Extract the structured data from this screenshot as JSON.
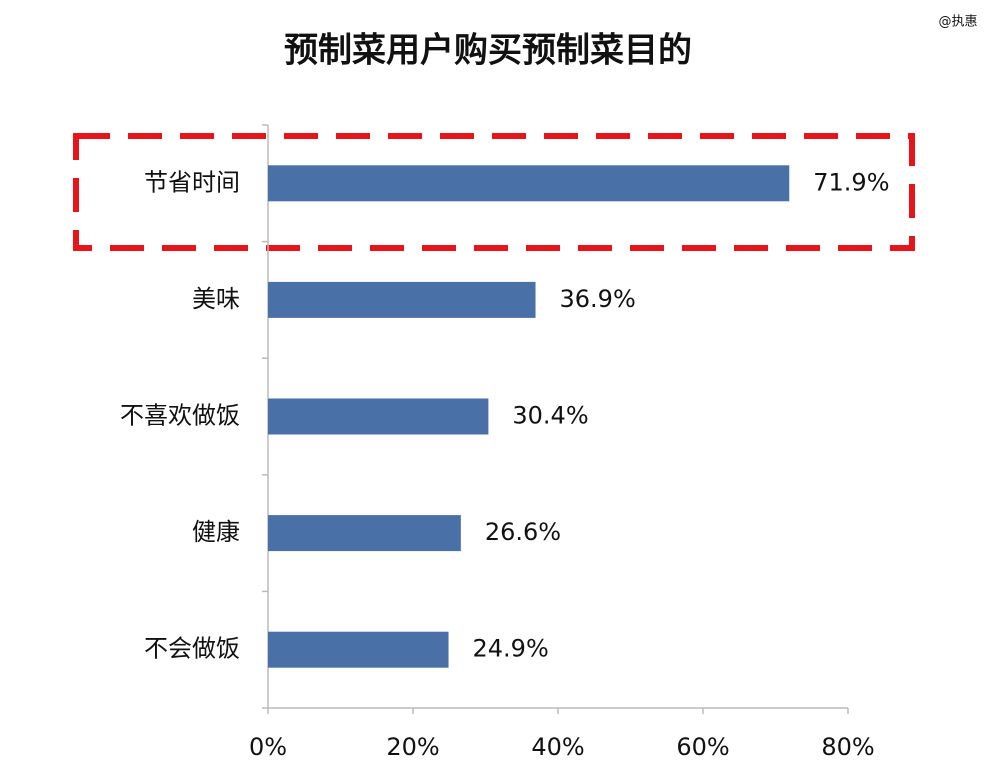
{
  "watermark": "@执惠",
  "chart_data": {
    "type": "bar",
    "orientation": "horizontal",
    "title": "预制菜用户购买预制菜目的",
    "categories": [
      "节省时间",
      "美味",
      "不喜欢做饭",
      "健康",
      "不会做饭"
    ],
    "values": [
      71.9,
      36.9,
      30.4,
      26.6,
      24.9
    ],
    "value_labels": [
      "71.9%",
      "36.9%",
      "30.4%",
      "26.6%",
      "24.9%"
    ],
    "color": "#4a70a8",
    "xlim": [
      0,
      80
    ],
    "xticks": [
      {
        "value": 0,
        "label": "0%"
      },
      {
        "value": 20,
        "label": "20%"
      },
      {
        "value": 40,
        "label": "40%"
      },
      {
        "value": 60,
        "label": "60%"
      },
      {
        "value": 80,
        "label": "80%"
      }
    ]
  }
}
